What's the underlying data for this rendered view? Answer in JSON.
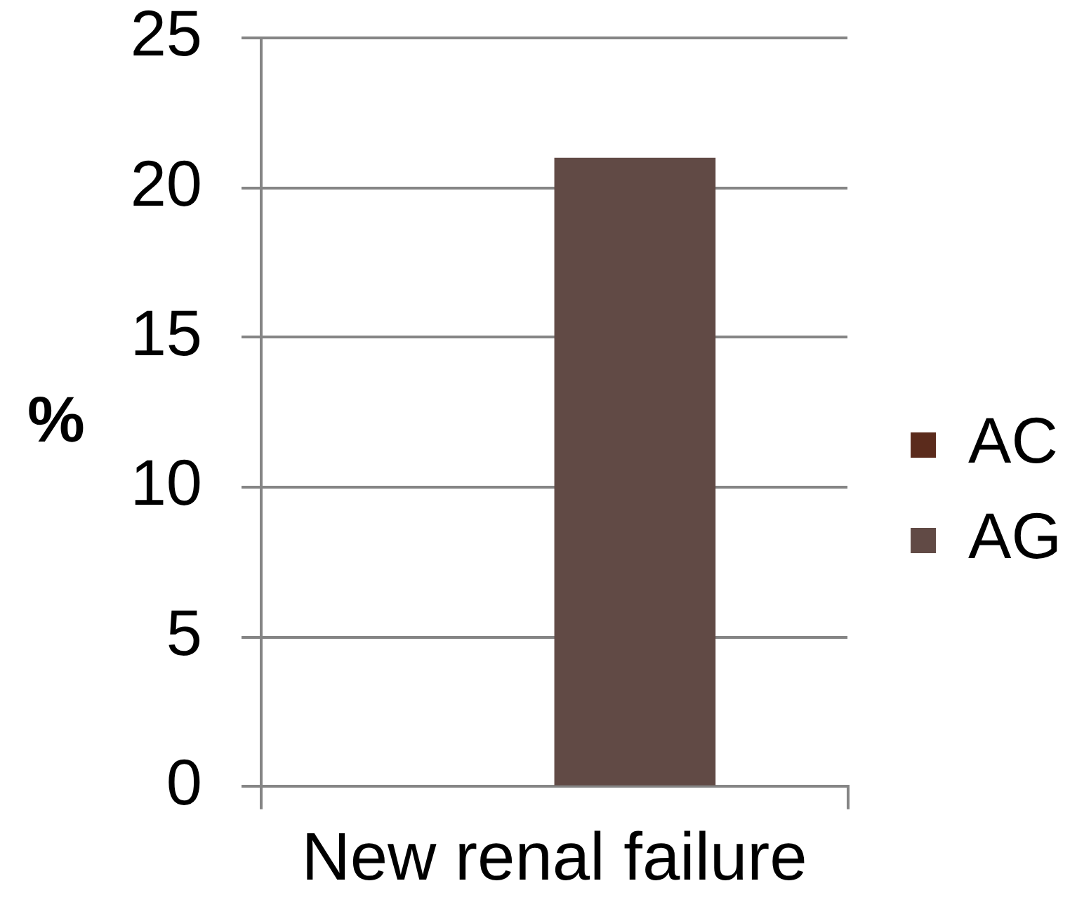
{
  "chart_data": {
    "type": "bar",
    "ylabel": "%",
    "categories": [
      "New renal failure"
    ],
    "series": [
      {
        "name": "AC",
        "color": "#5b2b1c",
        "values": [
          0
        ]
      },
      {
        "name": "AG",
        "color": "#614a45",
        "values": [
          21
        ]
      }
    ],
    "ylim": [
      0,
      25
    ],
    "yticks": [
      0,
      5,
      10,
      15,
      20,
      25
    ],
    "grid": "y",
    "legend": "right"
  }
}
